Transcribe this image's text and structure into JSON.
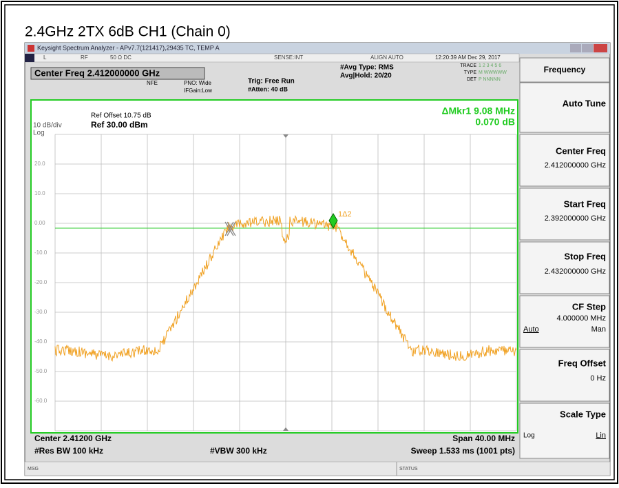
{
  "caption": "2.4GHz 2TX 6dB CH1 (Chain 0)",
  "window_title": "Keysight Spectrum Analyzer - APv7.7(121417),29435 TC, TEMP A",
  "status_bar": {
    "mode": "L",
    "rf": "RF",
    "input": "50 Ω  DC",
    "sense": "SENSE:INT",
    "align": "ALIGN AUTO",
    "time": "12:20:39 AM Dec 29, 2017"
  },
  "settings": {
    "center_freq": "Center Freq 2.412000000 GHz",
    "nfe": "NFE",
    "pno": "PNO: Wide",
    "ifgain": "IFGain:Low",
    "trig": "Trig: Free Run",
    "atten": "#Atten: 40 dB",
    "avg_type": "#Avg Type: RMS",
    "avg_hold": "Avg|Hold: 20/20",
    "trace": "TRACE",
    "trace_nums": "1 2 3 4 5 6",
    "type": "TYPE",
    "type_val": "M WWWWW",
    "det": "DET",
    "det_val": "P NNNNN"
  },
  "display": {
    "ref_offset": "Ref Offset 10.75 dB",
    "scale": "10 dB/div",
    "ref_level": "Ref 30.00 dBm",
    "log": "Log",
    "marker_delta": "ΔMkr1 9.08 MHz",
    "marker_value": "0.070 dB",
    "marker_label": "1Δ2",
    "y_labels": [
      "20.0",
      "10.0",
      "0.00",
      "-10.0",
      "-20.0",
      "-30.0",
      "-40.0",
      "-50.0",
      "-60.0"
    ],
    "center": "Center 2.41200 GHz",
    "res_bw": "#Res BW 100 kHz",
    "vbw": "#VBW 300 kHz",
    "span": "Span 40.00 MHz",
    "sweep": "Sweep  1.533 ms (1001 pts)"
  },
  "menu": {
    "header": "Frequency",
    "auto_tune": "Auto Tune",
    "center_freq": "Center Freq",
    "center_freq_val": "2.412000000 GHz",
    "start_freq": "Start Freq",
    "start_freq_val": "2.392000000 GHz",
    "stop_freq": "Stop Freq",
    "stop_freq_val": "2.432000000 GHz",
    "cf_step": "CF Step",
    "cf_step_val": "4.000000 MHz",
    "auto": "Auto",
    "man": "Man",
    "freq_offset": "Freq Offset",
    "freq_offset_val": "0 Hz",
    "scale_type": "Scale Type",
    "log": "Log",
    "lin": "Lin"
  },
  "footer": {
    "msg": "MSG",
    "status": "STATUS"
  }
}
